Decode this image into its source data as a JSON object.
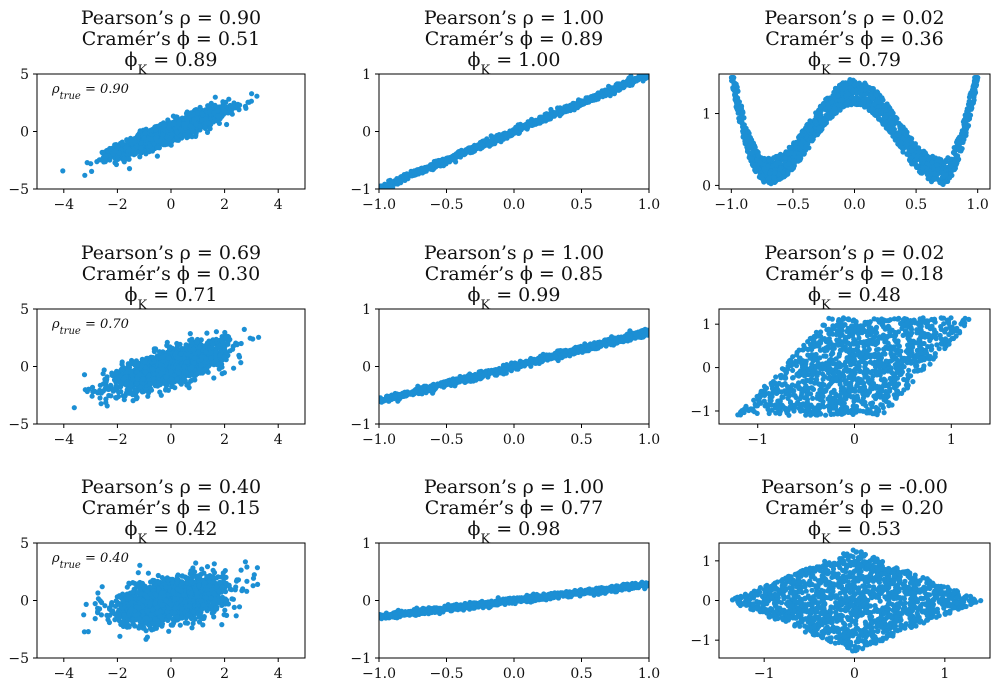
{
  "colors": {
    "points": "#1c8fd4",
    "axes": "#000000",
    "background": "#ffffff"
  },
  "chart_data": [
    {
      "type": "scatter",
      "title_lines": [
        "Pearson’s ρ = 0.90",
        "Cramér’s ϕ = 0.51",
        "ϕ_K = 0.89"
      ],
      "annotation": "ρ_true = 0.90",
      "xlim": [
        -5,
        5
      ],
      "ylim": [
        -5,
        5
      ],
      "xticks": [
        -4,
        -2,
        0,
        2,
        4
      ],
      "yticks": [
        -5,
        0,
        5
      ],
      "xtick_labels": [
        "−4",
        "−2",
        "0",
        "2",
        "4"
      ],
      "ytick_labels": [
        "−5",
        "0",
        "5"
      ],
      "shape": "linear_noise",
      "rho": 0.9,
      "n_points": 1800
    },
    {
      "type": "scatter",
      "title_lines": [
        "Pearson’s ρ = 1.00",
        "Cramér’s ϕ = 0.89",
        "ϕ_K = 1.00"
      ],
      "xlim": [
        -1,
        1
      ],
      "ylim": [
        -1,
        1
      ],
      "xticks": [
        -1,
        -0.5,
        0,
        0.5,
        1
      ],
      "yticks": [
        -1,
        0,
        1
      ],
      "xtick_labels": [
        "−1.0",
        "−0.5",
        "0.0",
        "0.5",
        "1.0"
      ],
      "ytick_labels": [
        "−1",
        "0",
        "1"
      ],
      "shape": "line",
      "slope": 1.0,
      "noise": 0.03,
      "n_points": 1000
    },
    {
      "type": "scatter",
      "title_lines": [
        "Pearson’s ρ = 0.02",
        "Cramér’s ϕ = 0.36",
        "ϕ_K = 0.79"
      ],
      "xlim": [
        -1.1,
        1.1
      ],
      "ylim": [
        -0.05,
        1.55
      ],
      "xticks": [
        -1,
        -0.5,
        0,
        0.5,
        1
      ],
      "yticks": [
        0,
        1
      ],
      "xtick_labels": [
        "−1.0",
        "−0.5",
        "0.0",
        "0.5",
        "1.0"
      ],
      "ytick_labels": [
        "0",
        "1"
      ],
      "shape": "wave",
      "n_points": 1600
    },
    {
      "type": "scatter",
      "title_lines": [
        "Pearson’s ρ = 0.69",
        "Cramér’s ϕ = 0.30",
        "ϕ_K = 0.71"
      ],
      "annotation": "ρ_true = 0.70",
      "xlim": [
        -5,
        5
      ],
      "ylim": [
        -5,
        5
      ],
      "xticks": [
        -4,
        -2,
        0,
        2,
        4
      ],
      "yticks": [
        -5,
        0,
        5
      ],
      "xtick_labels": [
        "−4",
        "−2",
        "0",
        "2",
        "4"
      ],
      "ytick_labels": [
        "−5",
        "0",
        "5"
      ],
      "shape": "linear_noise",
      "rho": 0.7,
      "n_points": 1800
    },
    {
      "type": "scatter",
      "title_lines": [
        "Pearson’s ρ = 1.00",
        "Cramér’s ϕ = 0.85",
        "ϕ_K = 0.99"
      ],
      "xlim": [
        -1,
        1
      ],
      "ylim": [
        -1,
        1
      ],
      "xticks": [
        -1,
        -0.5,
        0,
        0.5,
        1
      ],
      "yticks": [
        -1,
        0,
        1
      ],
      "xtick_labels": [
        "−1.0",
        "−0.5",
        "0.0",
        "0.5",
        "1.0"
      ],
      "ytick_labels": [
        "−1",
        "0",
        "1"
      ],
      "shape": "line",
      "slope": 0.6,
      "noise": 0.03,
      "n_points": 1000
    },
    {
      "type": "scatter",
      "title_lines": [
        "Pearson’s ρ = 0.02",
        "Cramér’s ϕ = 0.18",
        "ϕ_K = 0.48"
      ],
      "xlim": [
        -1.4,
        1.4
      ],
      "ylim": [
        -1.3,
        1.35
      ],
      "xticks": [
        -1,
        0,
        1
      ],
      "yticks": [
        -1,
        0,
        1
      ],
      "xtick_labels": [
        "−1",
        "0",
        "1"
      ],
      "ytick_labels": [
        "−1",
        "0",
        "1"
      ],
      "shape": "parallelogram",
      "n_points": 1300
    },
    {
      "type": "scatter",
      "title_lines": [
        "Pearson’s ρ = 0.40",
        "Cramér’s ϕ = 0.15",
        "ϕ_K = 0.42"
      ],
      "annotation": "ρ_true = 0.40",
      "xlim": [
        -5,
        5
      ],
      "ylim": [
        -5,
        5
      ],
      "xticks": [
        -4,
        -2,
        0,
        2,
        4
      ],
      "yticks": [
        -5,
        0,
        5
      ],
      "xtick_labels": [
        "−4",
        "−2",
        "0",
        "2",
        "4"
      ],
      "ytick_labels": [
        "−5",
        "0",
        "5"
      ],
      "shape": "linear_noise",
      "rho": 0.4,
      "n_points": 1800
    },
    {
      "type": "scatter",
      "title_lines": [
        "Pearson’s ρ = 1.00",
        "Cramér’s ϕ = 0.77",
        "ϕ_K = 0.98"
      ],
      "xlim": [
        -1,
        1
      ],
      "ylim": [
        -1,
        1
      ],
      "xticks": [
        -1,
        -0.5,
        0,
        0.5,
        1
      ],
      "yticks": [
        -1,
        0,
        1
      ],
      "xtick_labels": [
        "−1.0",
        "−0.5",
        "0.0",
        "0.5",
        "1.0"
      ],
      "ytick_labels": [
        "−1",
        "0",
        "1"
      ],
      "shape": "line",
      "slope": 0.28,
      "noise": 0.025,
      "n_points": 1000
    },
    {
      "type": "scatter",
      "title_lines": [
        "Pearson’s ρ = -0.00",
        "Cramér’s ϕ = 0.20",
        "ϕ_K = 0.53"
      ],
      "xlim": [
        -1.5,
        1.5
      ],
      "ylim": [
        -1.45,
        1.45
      ],
      "xticks": [
        -1,
        0,
        1
      ],
      "yticks": [
        -1,
        0,
        1
      ],
      "xtick_labels": [
        "−1",
        "0",
        "1"
      ],
      "ytick_labels": [
        "−1",
        "0",
        "1"
      ],
      "shape": "diamond",
      "n_points": 1500
    }
  ]
}
